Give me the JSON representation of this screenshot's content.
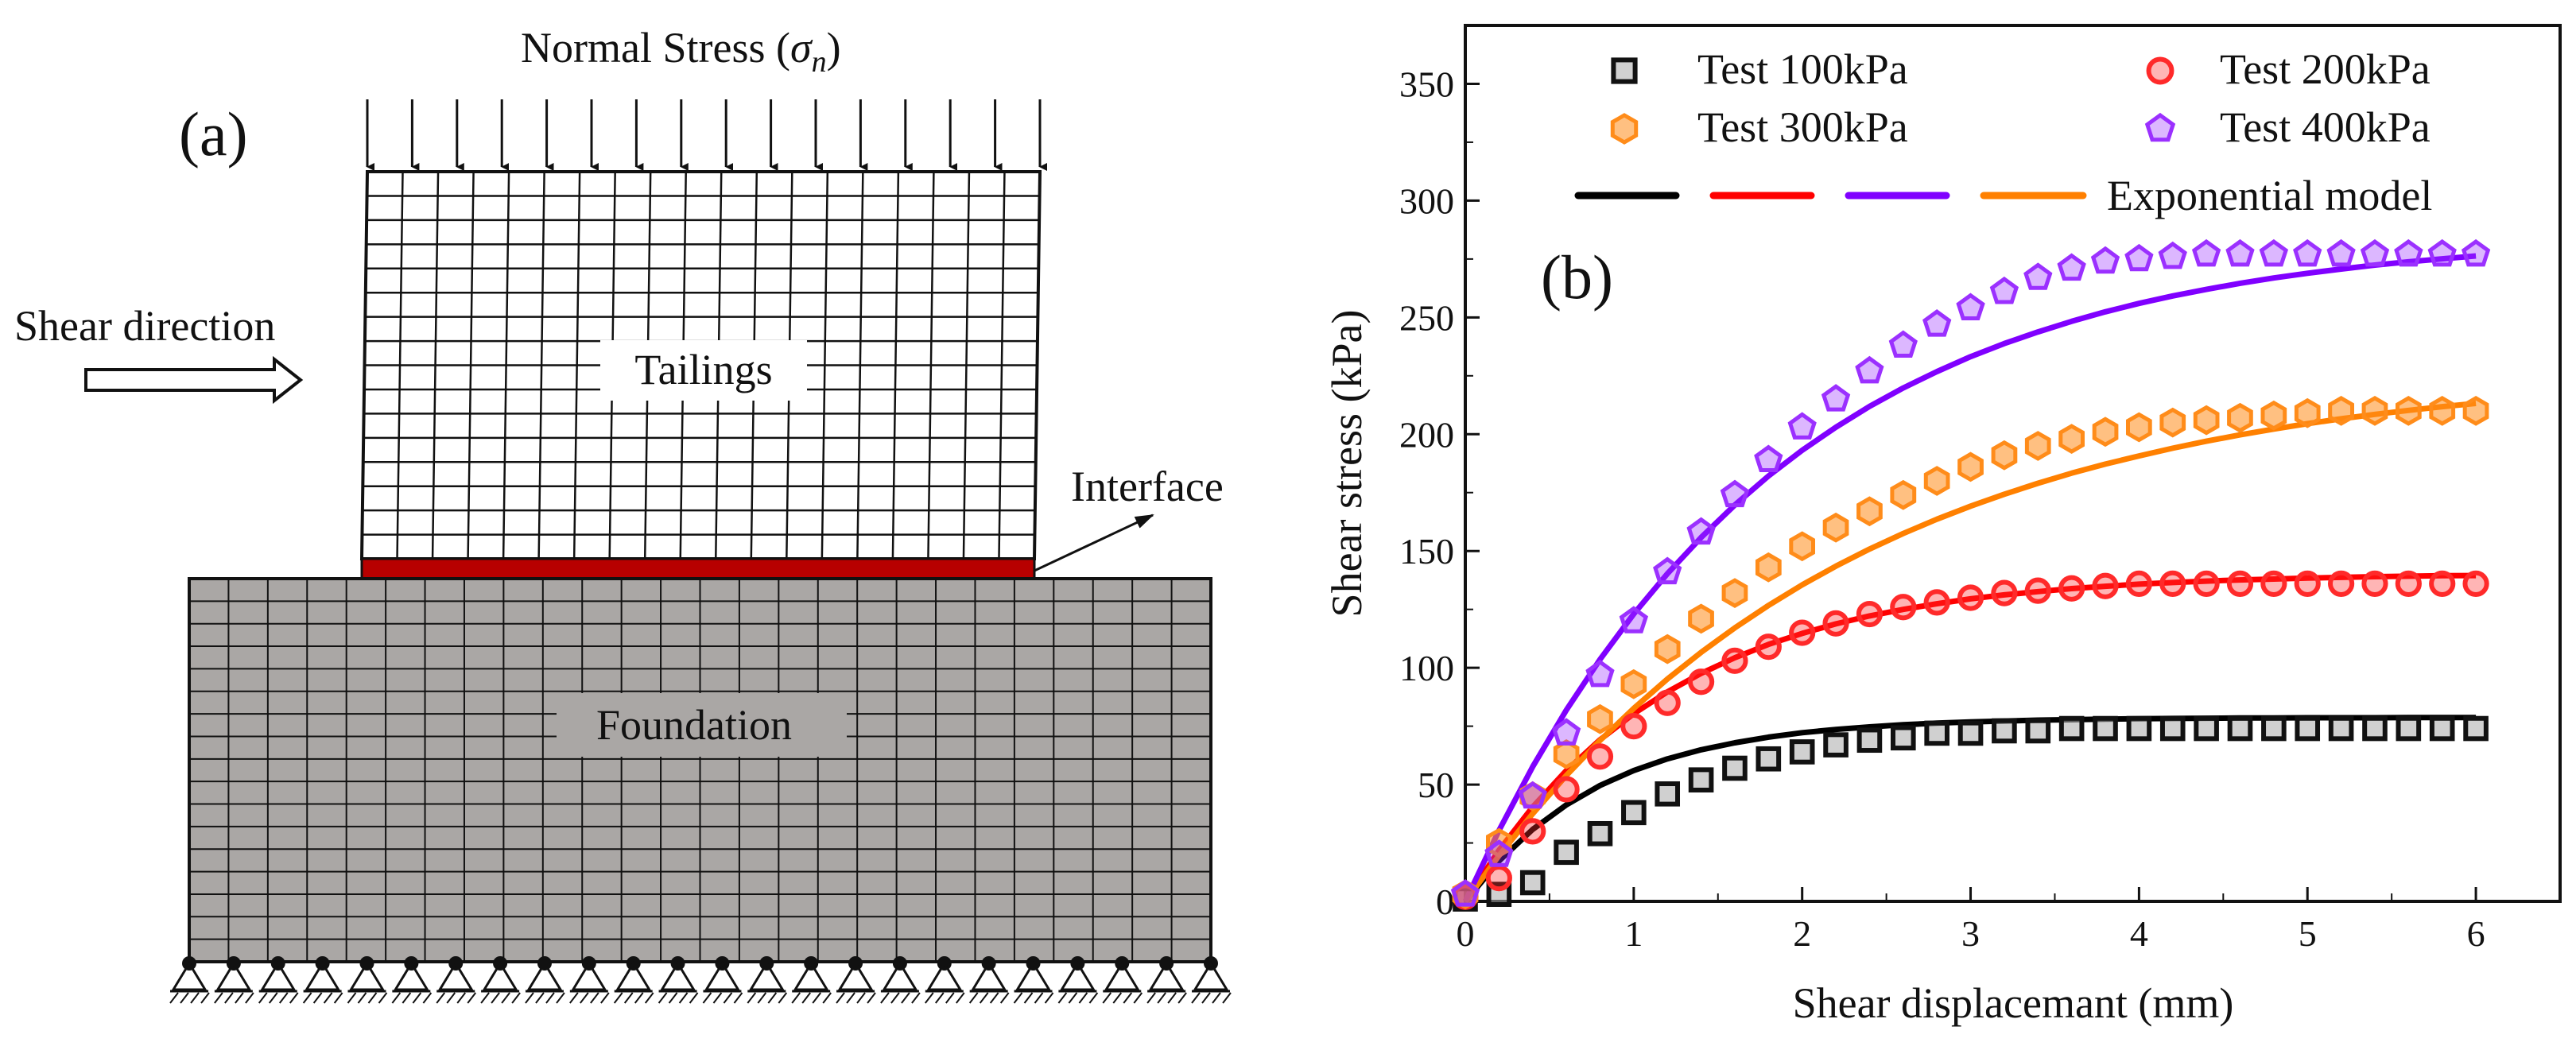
{
  "panel_a": {
    "label": "(a)",
    "normal_stress_prefix": "Normal Stress (",
    "normal_stress_symbol": "σ",
    "normal_stress_subscript": "n",
    "normal_stress_suffix": ")",
    "shear_direction": "Shear direction",
    "tailings": "Tailings",
    "interface": "Interface",
    "foundation": "Foundation",
    "colors": {
      "foundation_fill": "#aaa7a5",
      "interface_fill": "#b70000",
      "mesh_line": "#111111"
    }
  },
  "chart_data": {
    "type": "scatter",
    "panel_label": "(b)",
    "xlabel": "Shear displacemant (mm)",
    "ylabel": "Shear stress (kPa)",
    "xlim": [
      0,
      6.5
    ],
    "ylim": [
      0,
      375
    ],
    "xticks": [
      0,
      1,
      2,
      3,
      4,
      5,
      6
    ],
    "yticks": [
      0,
      50,
      100,
      150,
      200,
      250,
      300,
      350
    ],
    "grid": false,
    "legend_position": "top",
    "model_legend_label": "Exponential model",
    "series": [
      {
        "name": "Test 100kPa",
        "marker": "square",
        "color": "#111111",
        "line_color": "#000000",
        "line_dash": "solid",
        "x": [
          0.0,
          0.2,
          0.4,
          0.6,
          0.8,
          1.0,
          1.2,
          1.4,
          1.6,
          1.8,
          2.0,
          2.2,
          2.4,
          2.6,
          2.8,
          3.0,
          3.2,
          3.4,
          3.6,
          3.8,
          4.0,
          4.2,
          4.4,
          4.6,
          4.8,
          5.0,
          5.2,
          5.4,
          5.6,
          5.8,
          6.0
        ],
        "y": [
          1,
          3,
          8,
          21,
          29,
          38,
          46,
          52,
          57,
          61,
          64,
          67,
          69,
          70,
          72,
          72,
          73,
          73,
          74,
          74,
          74,
          74,
          74,
          74,
          74,
          74,
          74,
          74,
          74,
          74,
          74
        ],
        "model_y": [
          0,
          17.3,
          30.8,
          41.3,
          49.6,
          56.0,
          61.0,
          64.9,
          67.9,
          70.3,
          72.2,
          73.6,
          74.7,
          75.6,
          76.3,
          76.8,
          77.2,
          77.6,
          77.8,
          78.0,
          78.2,
          78.3,
          78.4,
          78.5,
          78.5,
          78.6,
          78.6,
          78.6,
          78.7,
          78.7,
          78.7
        ]
      },
      {
        "name": "Test 200kPa",
        "marker": "circle",
        "color": "#ff2a2a",
        "line_color": "#ff0000",
        "line_dash": "longdash",
        "x": [
          0.0,
          0.2,
          0.4,
          0.6,
          0.8,
          1.0,
          1.2,
          1.4,
          1.6,
          1.8,
          2.0,
          2.2,
          2.4,
          2.6,
          2.8,
          3.0,
          3.2,
          3.4,
          3.6,
          3.8,
          4.0,
          4.2,
          4.4,
          4.6,
          4.8,
          5.0,
          5.2,
          5.4,
          5.6,
          5.8,
          6.0
        ],
        "y": [
          2,
          10,
          30,
          48,
          62,
          75,
          85,
          94,
          103,
          109,
          115,
          119,
          123,
          126,
          128,
          130,
          132,
          133,
          134,
          135,
          136,
          136,
          136,
          136,
          136,
          136,
          136,
          136,
          136,
          136,
          136
        ],
        "model_y": [
          0,
          21.9,
          40.4,
          56.0,
          69.2,
          80.3,
          89.7,
          97.6,
          104.3,
          110.0,
          114.7,
          118.8,
          122.2,
          125.0,
          127.4,
          129.5,
          131.2,
          132.6,
          133.9,
          134.9,
          135.8,
          136.5,
          137.1,
          137.6,
          138.0,
          138.4,
          138.7,
          139.0,
          139.2,
          139.4,
          139.5
        ]
      },
      {
        "name": "Test 300kPa",
        "marker": "hexagon",
        "color": "#ff8c1a",
        "line_color": "#ff8000",
        "line_dash": "longdash",
        "x": [
          0.0,
          0.2,
          0.4,
          0.6,
          0.8,
          1.0,
          1.2,
          1.4,
          1.6,
          1.8,
          2.0,
          2.2,
          2.4,
          2.6,
          2.8,
          3.0,
          3.2,
          3.4,
          3.6,
          3.8,
          4.0,
          4.2,
          4.4,
          4.6,
          4.8,
          5.0,
          5.2,
          5.4,
          5.6,
          5.8,
          6.0
        ],
        "y": [
          3,
          25,
          45,
          63,
          78,
          93,
          108,
          121,
          132,
          143,
          152,
          160,
          167,
          174,
          180,
          186,
          191,
          195,
          198,
          201,
          203,
          205,
          206,
          207,
          208,
          209,
          210,
          210,
          210,
          210,
          210
        ],
        "model_y": [
          0,
          19.6,
          37.5,
          53.9,
          68.9,
          82.6,
          95.2,
          106.6,
          117.1,
          126.7,
          135.5,
          143.5,
          150.8,
          157.5,
          163.6,
          169.2,
          174.3,
          179.0,
          183.3,
          187.2,
          190.7,
          194.0,
          197.0,
          199.7,
          202.2,
          204.5,
          206.6,
          208.5,
          210.2,
          211.8,
          213.2
        ]
      },
      {
        "name": "Test 400kPa",
        "marker": "pentagon",
        "color": "#9b30ff",
        "line_color": "#8000ff",
        "line_dash": "longdash",
        "x": [
          0.0,
          0.2,
          0.4,
          0.6,
          0.8,
          1.0,
          1.2,
          1.4,
          1.6,
          1.8,
          2.0,
          2.2,
          2.4,
          2.6,
          2.8,
          3.0,
          3.2,
          3.4,
          3.6,
          3.8,
          4.0,
          4.2,
          4.4,
          4.6,
          4.8,
          5.0,
          5.2,
          5.4,
          5.6,
          5.8,
          6.0
        ],
        "y": [
          3,
          20,
          45,
          72,
          97,
          120,
          141,
          158,
          174,
          189,
          203,
          215,
          227,
          238,
          247,
          254,
          261,
          267,
          271,
          274,
          275,
          276,
          277,
          277,
          277,
          277,
          277,
          277,
          277,
          277,
          277
        ],
        "model_y": [
          0,
          30.4,
          57.6,
          81.9,
          103.6,
          123.0,
          140.3,
          155.8,
          169.7,
          182.1,
          193.1,
          203.0,
          211.9,
          219.8,
          226.8,
          233.2,
          238.8,
          243.8,
          248.3,
          252.4,
          256.0,
          259.2,
          262.0,
          264.6,
          266.9,
          268.9,
          270.7,
          272.4,
          273.8,
          275.1,
          276.3
        ]
      }
    ]
  }
}
